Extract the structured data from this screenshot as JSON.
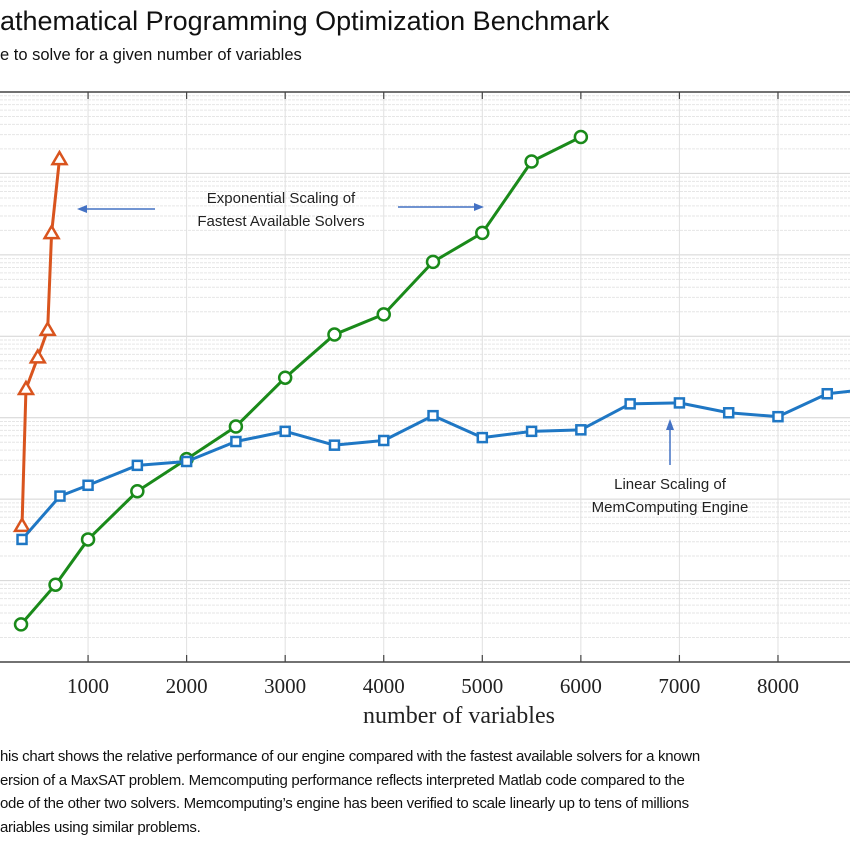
{
  "header": {
    "title": "athematical Programming Optimization Benchmark",
    "subtitle": "e to solve for a given number of variables"
  },
  "caption": [
    "his chart shows the relative performance of our engine compared with the fastest available solvers for a known",
    "ersion of a MaxSAT problem.  Memcomputing performance reflects interpreted Matlab code compared to the",
    "ode of the other two solvers.  Memcomputing’s engine has been verified to scale linearly up to tens of millions",
    "ariables using similar problems."
  ],
  "chart_data": {
    "type": "line",
    "xlabel": "number of variables",
    "ylabel": "",
    "x_ticks": [
      "1000",
      "2000",
      "3000",
      "4000",
      "5000",
      "6000",
      "7000",
      "8000"
    ],
    "x_tick_values": [
      1000,
      2000,
      3000,
      4000,
      5000,
      6000,
      7000,
      8000
    ],
    "y_scale": "log",
    "y_tick_labels_visible": false,
    "ylim": [
      1,
      10000000
    ],
    "grid": true,
    "series": [
      {
        "color": "#d9541e",
        "marker": "triangle",
        "x": [
          330,
          370,
          490,
          590,
          630,
          710
        ],
        "y": [
          47,
          2250,
          5500,
          12000,
          185000,
          1500000
        ]
      },
      {
        "color": "#1a8a1a",
        "marker": "circle",
        "x": [
          320,
          670,
          1000,
          1500,
          2000,
          2500,
          3000,
          3500,
          4000,
          4500,
          5000,
          5500,
          6000
        ],
        "y": [
          2.9,
          8.9,
          32,
          125,
          310,
          780,
          3100,
          10500,
          18600,
          82000,
          186000,
          1400000,
          2800000
        ]
      },
      {
        "color": "#1f77c4",
        "marker": "square",
        "x": [
          330,
          715,
          1000,
          1500,
          2000,
          2500,
          3000,
          3500,
          4000,
          4500,
          5000,
          5500,
          6000,
          6500,
          7000,
          7500,
          8000,
          8500,
          9000
        ],
        "y": [
          32,
          109,
          148,
          260,
          290,
          510,
          680,
          460,
          525,
          1060,
          570,
          680,
          710,
          1480,
          1520,
          1150,
          1030,
          1970,
          2300
        ]
      }
    ],
    "annotations": [
      {
        "lines": [
          "Exponential Scaling of",
          "Fastest Available Solvers"
        ],
        "arrows": [
          "left",
          "right"
        ]
      },
      {
        "lines": [
          "Linear Scaling of",
          "MemComputing Engine"
        ],
        "arrows": [
          "up"
        ]
      }
    ]
  }
}
